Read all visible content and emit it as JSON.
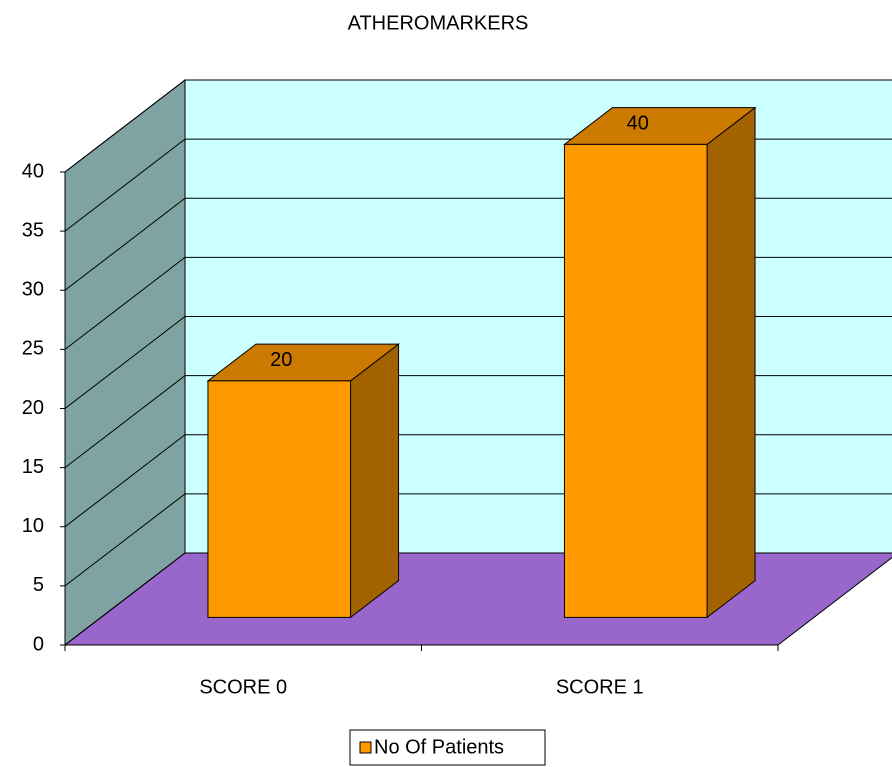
{
  "chart_data": {
    "type": "bar3d",
    "title": "ATHEROMARKERS",
    "categories": [
      "SCORE 0",
      "SCORE 1"
    ],
    "series": [
      {
        "name": "No Of Patients",
        "color": "#ff9900",
        "values": [
          20,
          40
        ]
      }
    ],
    "ylim": [
      0,
      40
    ],
    "yticks": [
      0,
      5,
      10,
      15,
      20,
      25,
      30,
      35,
      40
    ],
    "grid": true,
    "legend": "bottom"
  }
}
